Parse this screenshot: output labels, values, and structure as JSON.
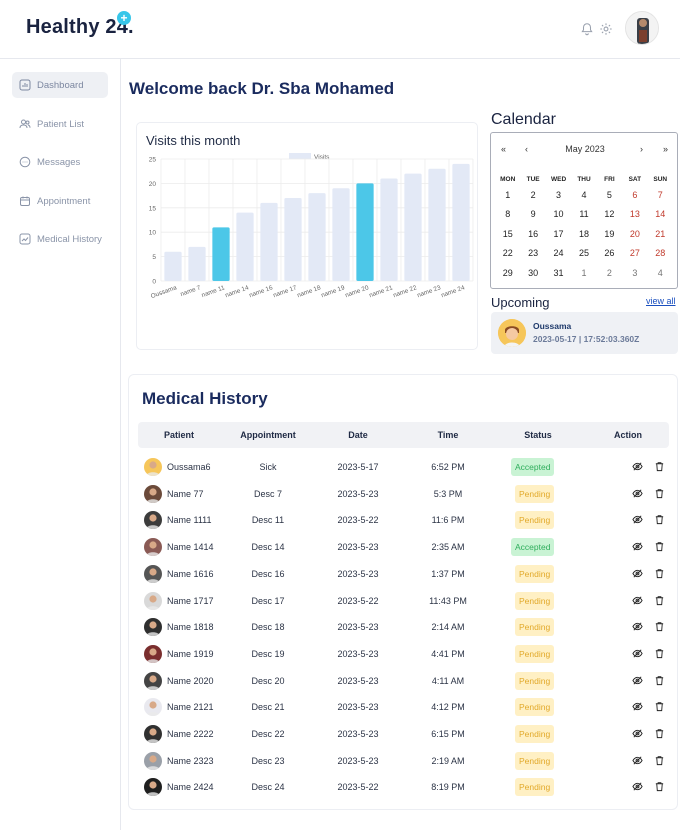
{
  "app": {
    "logo_text": "Healthy 24.",
    "logo_plus": "+"
  },
  "topbar": {
    "icons": [
      "bell-icon",
      "gear-icon"
    ],
    "avatar": "user-avatar"
  },
  "sidebar": {
    "items": [
      {
        "label": "Dashboard",
        "icon": "dashboard-icon",
        "active": true
      },
      {
        "label": "Patient List",
        "icon": "users-icon",
        "active": false
      },
      {
        "label": "Messages",
        "icon": "chat-icon",
        "active": false
      },
      {
        "label": "Appointment",
        "icon": "calendar-icon",
        "active": false
      },
      {
        "label": "Medical History",
        "icon": "trend-icon",
        "active": false
      }
    ]
  },
  "welcome": "Welcome back Dr. Sba Mohamed",
  "chart_data": {
    "type": "bar",
    "title": "Visits this month",
    "legend": "Visits",
    "legend_position": "top",
    "categories": [
      "Oussama",
      "name 7",
      "name 11",
      "name 14",
      "name 16",
      "name 17",
      "name 18",
      "name 19",
      "name 20",
      "name 21",
      "name 22",
      "name 23",
      "name 24"
    ],
    "values": [
      6,
      7,
      11,
      14,
      16,
      17,
      18,
      19,
      20,
      21,
      22,
      23,
      24
    ],
    "highlighted": [
      "name 11",
      "name 20"
    ],
    "ylim": [
      0,
      25
    ],
    "yticks": [
      0,
      5,
      10,
      15,
      20,
      25
    ],
    "grid": true,
    "colors": {
      "default": "#e3e9f6",
      "highlight": "#4cc7e8"
    }
  },
  "calendar": {
    "title": "Calendar",
    "month_label": "May 2023",
    "nav": {
      "prev_year": "«",
      "prev_month": "‹",
      "next_month": "›",
      "next_year": "»"
    },
    "weekdays": [
      "MON",
      "TUE",
      "WED",
      "THU",
      "FRI",
      "SAT",
      "SUN"
    ],
    "days": [
      "1",
      "2",
      "3",
      "4",
      "5",
      "6",
      "7",
      "8",
      "9",
      "10",
      "11",
      "12",
      "13",
      "14",
      "15",
      "16",
      "17",
      "18",
      "19",
      "20",
      "21",
      "22",
      "23",
      "24",
      "25",
      "26",
      "27",
      "28",
      "29",
      "30",
      "31",
      "1",
      "2",
      "3",
      "4"
    ],
    "outside_from_index": 31
  },
  "upcoming": {
    "title": "Upcoming",
    "view_all": "view all",
    "name": "Oussama",
    "datetime": "2023-05-17 | 17:52:03.360Z"
  },
  "medical_history": {
    "title": "Medical History",
    "headers": [
      "Patient",
      "Appointment",
      "Date",
      "Time",
      "Status",
      "Action"
    ],
    "rows": [
      {
        "patient": "Oussama6",
        "appointment": "Sick",
        "date": "2023-5-17",
        "time": "6:52 PM",
        "status": "Accepted"
      },
      {
        "patient": "Name 77",
        "appointment": "Desc 7",
        "date": "2023-5-23",
        "time": "5:3 PM",
        "status": "Pending"
      },
      {
        "patient": "Name 1111",
        "appointment": "Desc 11",
        "date": "2023-5-22",
        "time": "11:6 PM",
        "status": "Pending"
      },
      {
        "patient": "Name 1414",
        "appointment": "Desc 14",
        "date": "2023-5-23",
        "time": "2:35 AM",
        "status": "Accepted"
      },
      {
        "patient": "Name 1616",
        "appointment": "Desc 16",
        "date": "2023-5-23",
        "time": "1:37 PM",
        "status": "Pending"
      },
      {
        "patient": "Name 1717",
        "appointment": "Desc 17",
        "date": "2023-5-22",
        "time": "11:43 PM",
        "status": "Pending"
      },
      {
        "patient": "Name 1818",
        "appointment": "Desc 18",
        "date": "2023-5-23",
        "time": "2:14 AM",
        "status": "Pending"
      },
      {
        "patient": "Name 1919",
        "appointment": "Desc 19",
        "date": "2023-5-23",
        "time": "4:41 PM",
        "status": "Pending"
      },
      {
        "patient": "Name 2020",
        "appointment": "Desc 20",
        "date": "2023-5-23",
        "time": "4:11 AM",
        "status": "Pending"
      },
      {
        "patient": "Name 2121",
        "appointment": "Desc 21",
        "date": "2023-5-23",
        "time": "4:12 PM",
        "status": "Pending"
      },
      {
        "patient": "Name 2222",
        "appointment": "Desc 22",
        "date": "2023-5-23",
        "time": "6:15 PM",
        "status": "Pending"
      },
      {
        "patient": "Name 2323",
        "appointment": "Desc 23",
        "date": "2023-5-23",
        "time": "2:19 AM",
        "status": "Pending"
      },
      {
        "patient": "Name 2424",
        "appointment": "Desc 24",
        "date": "2023-5-22",
        "time": "8:19 PM",
        "status": "Pending"
      }
    ],
    "actions": [
      "eye-slash-icon",
      "trash-icon"
    ]
  }
}
